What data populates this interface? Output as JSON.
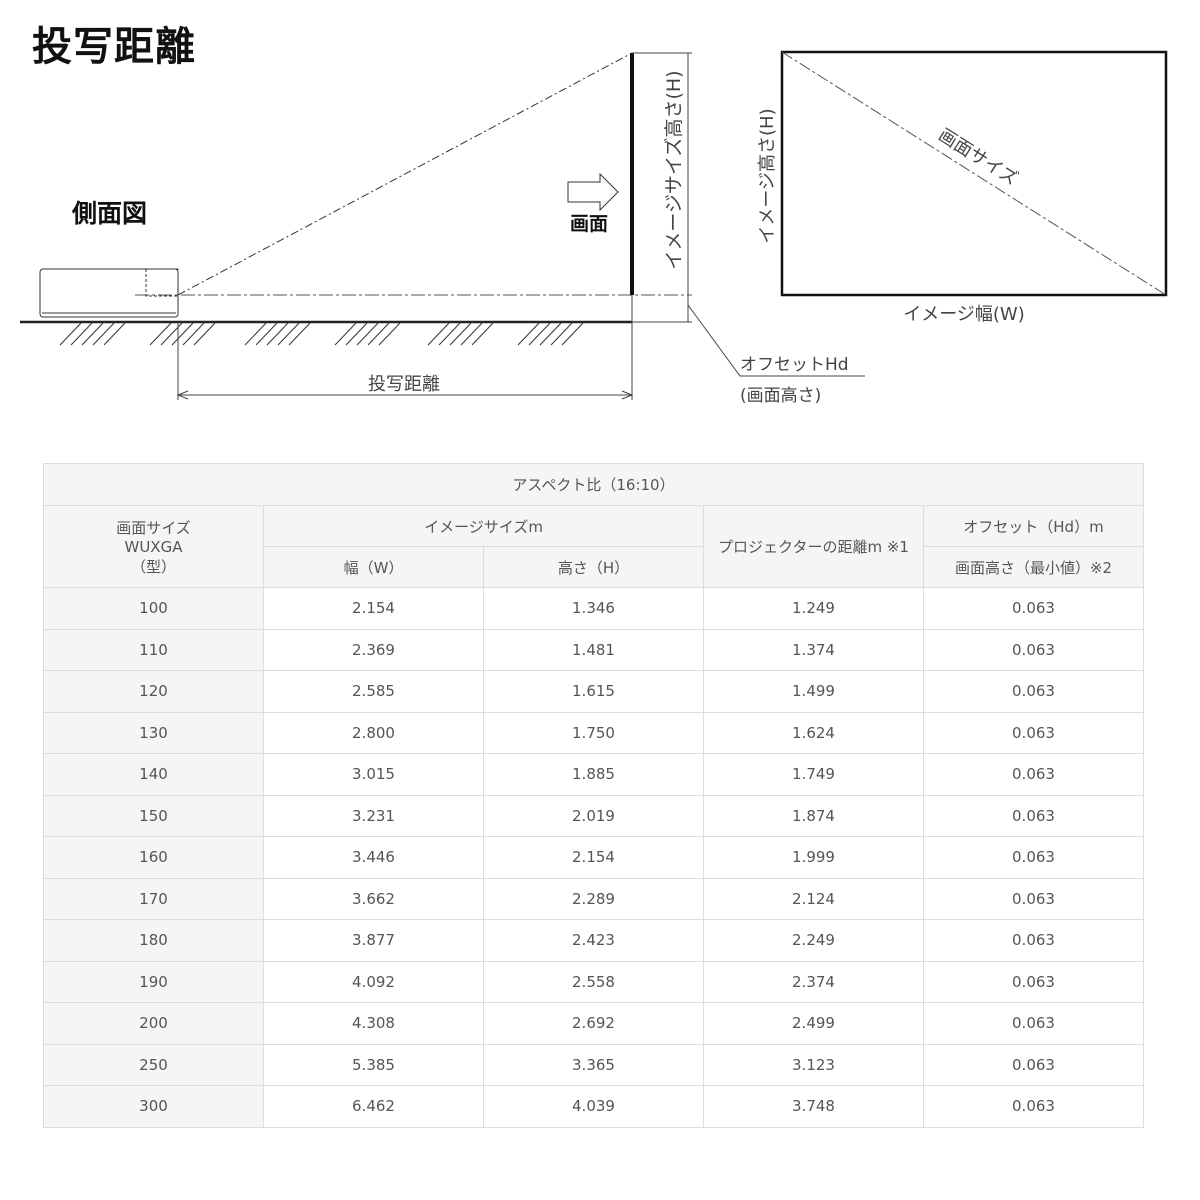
{
  "title": "投写距離",
  "diagram": {
    "side_view_label": "側面図",
    "screen_label": "画面",
    "image_height_label": "イメージサイズ高さ(H)",
    "throw_distance_label": "投写距離",
    "offset_label": "オフセットHd",
    "offset_sub_label": "(画面高さ)",
    "screen_size_label": "画面サイズ",
    "image_width_label": "イメージ幅(W)",
    "image_height_front_label": "イメージ高さ(H)"
  },
  "table": {
    "aspect_header": "アスペクト比（16:10）",
    "screen_size_header": [
      "画面サイズ",
      "WUXGA",
      "（型）"
    ],
    "image_size_header": "イメージサイズm",
    "width_header": "幅（W）",
    "height_header": "高さ（H）",
    "distance_header": "プロジェクターの距離m ※1",
    "offset_header": "オフセット（Hd）m",
    "offset_sub_header": "画面高さ（最小値）※2",
    "rows": [
      [
        "100",
        "2.154",
        "1.346",
        "1.249",
        "0.063"
      ],
      [
        "110",
        "2.369",
        "1.481",
        "1.374",
        "0.063"
      ],
      [
        "120",
        "2.585",
        "1.615",
        "1.499",
        "0.063"
      ],
      [
        "130",
        "2.800",
        "1.750",
        "1.624",
        "0.063"
      ],
      [
        "140",
        "3.015",
        "1.885",
        "1.749",
        "0.063"
      ],
      [
        "150",
        "3.231",
        "2.019",
        "1.874",
        "0.063"
      ],
      [
        "160",
        "3.446",
        "2.154",
        "1.999",
        "0.063"
      ],
      [
        "170",
        "3.662",
        "2.289",
        "2.124",
        "0.063"
      ],
      [
        "180",
        "3.877",
        "2.423",
        "2.249",
        "0.063"
      ],
      [
        "190",
        "4.092",
        "2.558",
        "2.374",
        "0.063"
      ],
      [
        "200",
        "4.308",
        "2.692",
        "2.499",
        "0.063"
      ],
      [
        "250",
        "5.385",
        "3.365",
        "3.123",
        "0.063"
      ],
      [
        "300",
        "6.462",
        "4.039",
        "3.748",
        "0.063"
      ]
    ]
  }
}
